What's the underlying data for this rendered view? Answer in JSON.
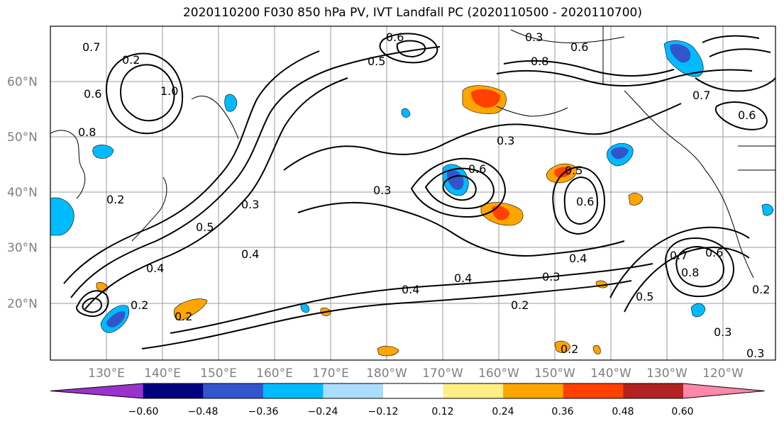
{
  "title": "2020110200 F030 850 hPa PV, IVT Landfall PC (2020110500 - 2020110700)",
  "lat_labels": [
    "60°N",
    "50°N",
    "40°N",
    "30°N",
    "20°N"
  ],
  "lon_labels": [
    "130°E",
    "140°E",
    "150°E",
    "160°E",
    "170°E",
    "180°W",
    "170°W",
    "160°W",
    "150°W",
    "140°W",
    "130°W",
    "120°W"
  ],
  "colorbar": {
    "colors": [
      "#9933cc",
      "#000080",
      "#3355cc",
      "#00bbff",
      "#aaddff",
      "#ffffff",
      "#ffee88",
      "#ffa500",
      "#ff4000",
      "#b22222",
      "#ff88aa"
    ],
    "ticks": [
      "−0.60",
      "−0.48",
      "−0.36",
      "−0.24",
      "−0.12",
      "0.12",
      "0.24",
      "0.36",
      "0.48",
      "0.60"
    ]
  },
  "contour_labels": [
    "0.6",
    "0.3",
    "0.7",
    "0.2",
    "0.6",
    "1.0",
    "0.8",
    "0.6",
    "0.8",
    "0.2",
    "0.5",
    "0.3",
    "0.3",
    "0.6",
    "0.5",
    "0.6",
    "0.4",
    "0.4",
    "0.3",
    "0.4",
    "0.4",
    "0.4",
    "0.2",
    "0.2",
    "0.3",
    "0.7",
    "0.6",
    "0.5",
    "0.3",
    "0.2",
    "0.2",
    "0.8",
    "0.6",
    "0.7",
    "0.5",
    "0.3",
    "0.2"
  ]
}
